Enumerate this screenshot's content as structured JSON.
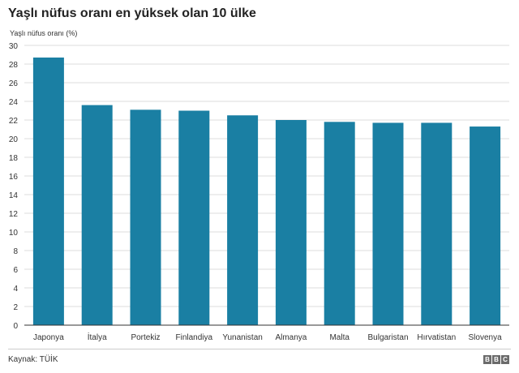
{
  "header": {
    "title": "Yaşlı nüfus oranı en yüksek olan 10 ülke",
    "axis_caption": "Yaşlı nüfus oranı (%)"
  },
  "footer": {
    "source": "Kaynak: TÜİK",
    "logo_letters": [
      "B",
      "B",
      "C"
    ]
  },
  "colors": {
    "bar": "#1a7fa3",
    "grid": "#dddddd",
    "axis": "#333333"
  },
  "chart_data": {
    "type": "bar",
    "title": "Yaşlı nüfus oranı en yüksek olan 10 ülke",
    "ylabel": "Yaşlı nüfus oranı (%)",
    "xlabel": "",
    "categories": [
      "Japonya",
      "İtalya",
      "Portekiz",
      "Finlandiya",
      "Yunanistan",
      "Almanya",
      "Malta",
      "Bulgaristan",
      "Hırvatistan",
      "Slovenya"
    ],
    "values": [
      28.7,
      23.6,
      23.1,
      23.0,
      22.5,
      22.0,
      21.8,
      21.7,
      21.7,
      21.3
    ],
    "ylim": [
      0,
      30
    ],
    "yticks": [
      0,
      2,
      4,
      6,
      8,
      10,
      12,
      14,
      16,
      18,
      20,
      22,
      24,
      26,
      28,
      30
    ],
    "grid": true
  }
}
